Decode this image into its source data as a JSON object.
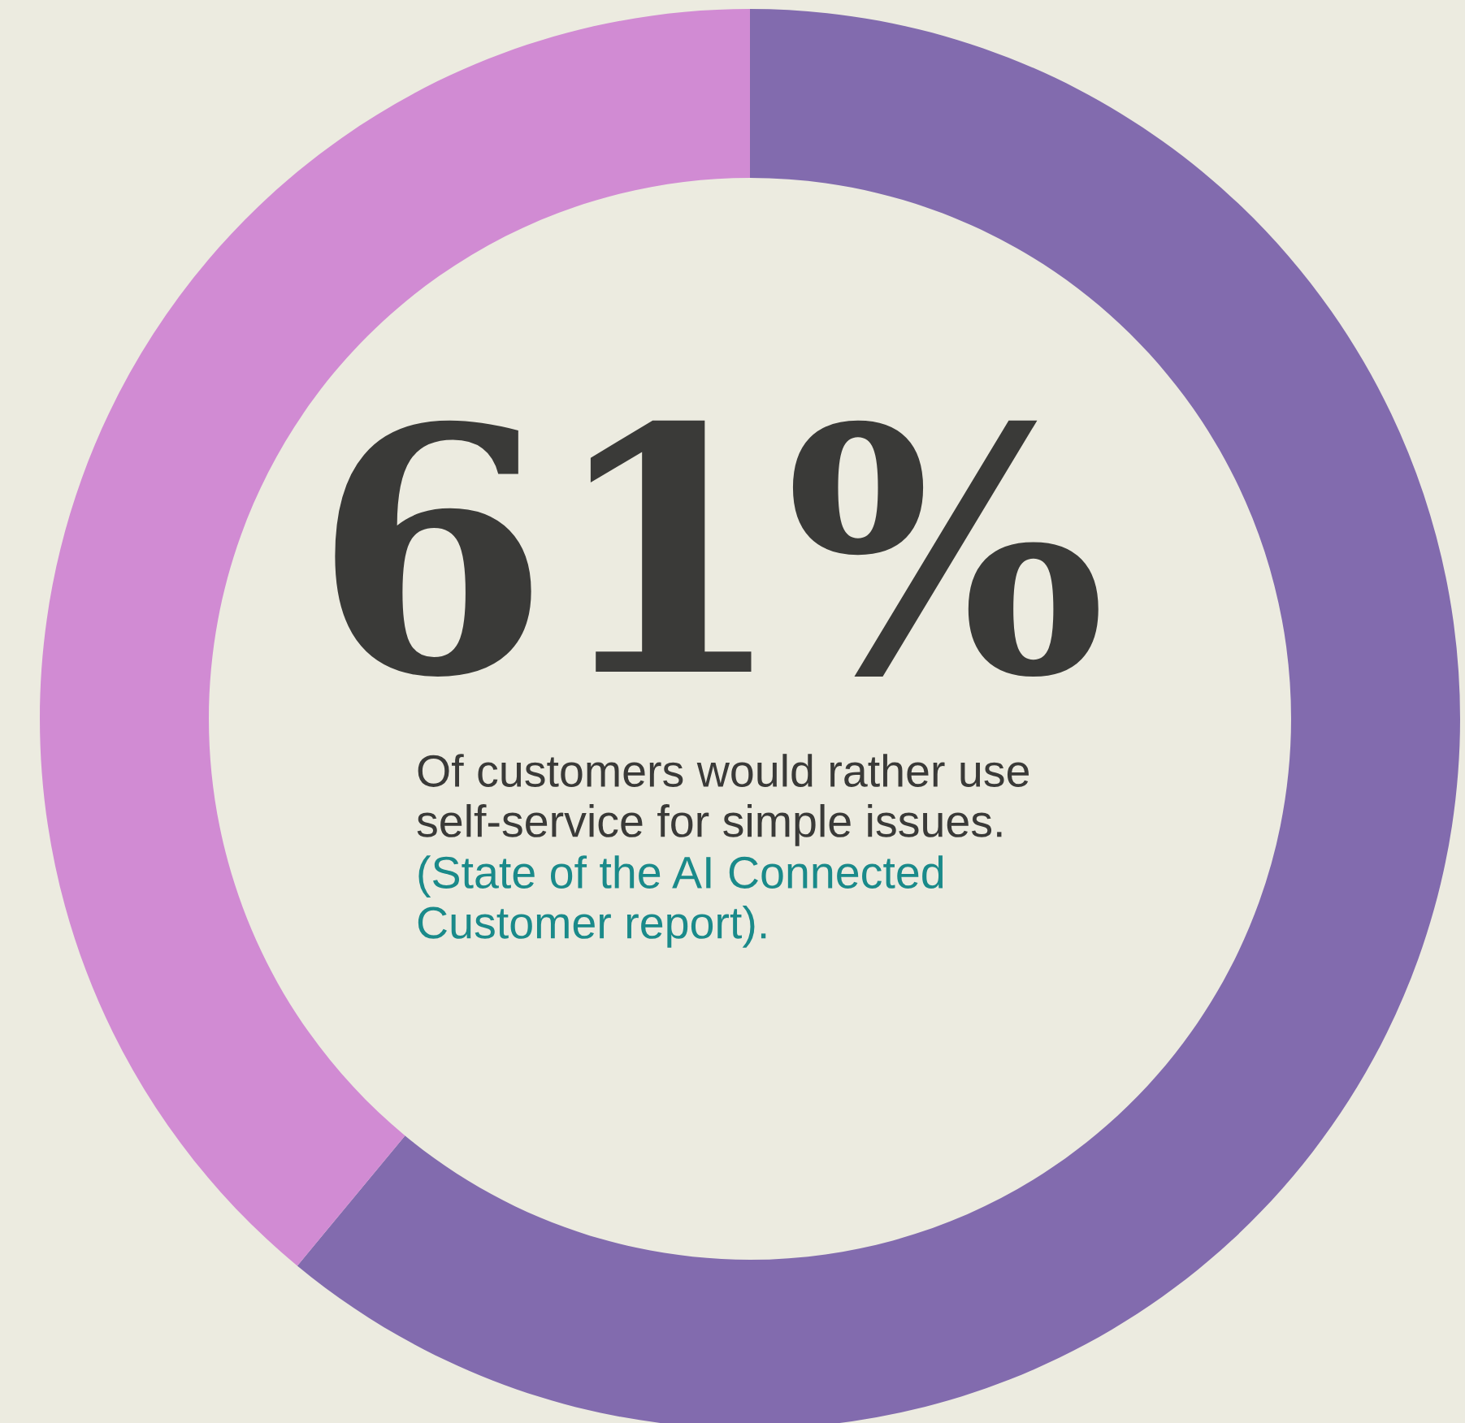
{
  "chart_data": {
    "type": "donut",
    "categories": [
      null,
      null
    ],
    "values": [
      61,
      39
    ],
    "colors": [
      "#826bae",
      "#d18bd3"
    ],
    "value_labels": [
      "61%",
      null
    ],
    "annotations": [
      "Of customers would rather use self-service for simple issues.",
      "(State of the AI Connected Customer report)."
    ]
  }
}
